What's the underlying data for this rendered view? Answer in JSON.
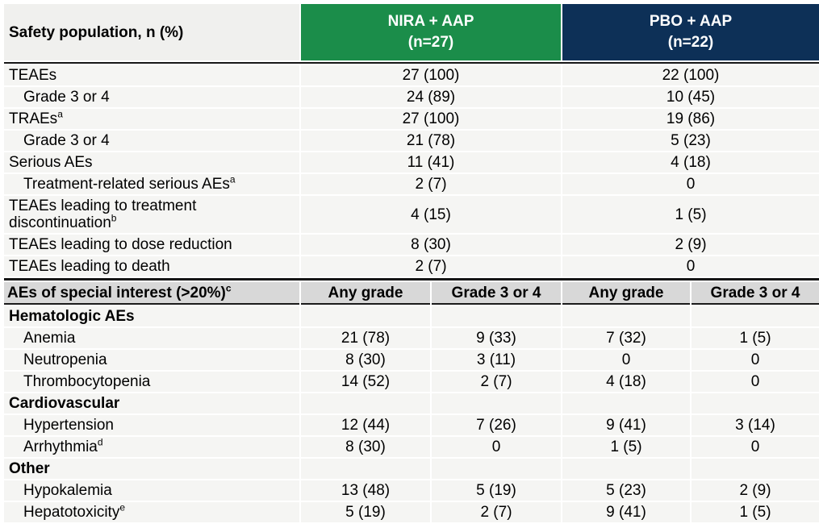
{
  "table": {
    "header": {
      "label": "Safety population, n (%)",
      "groups": [
        {
          "name": "NIRA + AAP",
          "n": "(n=27)"
        },
        {
          "name": "PBO + AAP",
          "n": "(n=22)"
        }
      ]
    },
    "overall_section": {
      "rows": [
        {
          "label": "TEAEs",
          "indent": 0,
          "nira": "27 (100)",
          "pbo": "22 (100)"
        },
        {
          "label": "Grade 3 or 4",
          "indent": 1,
          "nira": "24 (89)",
          "pbo": "10 (45)"
        },
        {
          "label": "TRAEs",
          "sup": "a",
          "indent": 0,
          "nira": "27 (100)",
          "pbo": "19 (86)"
        },
        {
          "label": "Grade 3 or 4",
          "indent": 1,
          "nira": "21 (78)",
          "pbo": "5 (23)"
        },
        {
          "label": "Serious AEs",
          "indent": 0,
          "nira": "11 (41)",
          "pbo": "4 (18)"
        },
        {
          "label": "Treatment-related serious AEs",
          "sup": "a",
          "indent": 1,
          "nira": "2 (7)",
          "pbo": "0"
        },
        {
          "label": "TEAEs leading to treatment discontinuation",
          "sup": "b",
          "indent": 0,
          "nira": "4 (15)",
          "pbo": "1 (5)"
        },
        {
          "label": "TEAEs leading to dose reduction",
          "indent": 0,
          "nira": "8 (30)",
          "pbo": "2 (9)"
        },
        {
          "label": "TEAEs leading to death",
          "indent": 0,
          "nira": "2 (7)",
          "pbo": "0"
        }
      ]
    },
    "special_interest_section": {
      "header": {
        "label": "AEs of special interest (>20%)",
        "sup": "c",
        "columns": [
          "Any grade",
          "Grade 3 or 4",
          "Any grade",
          "Grade 3 or 4"
        ]
      },
      "rows": [
        {
          "label": "Hematologic AEs",
          "category": true
        },
        {
          "label": "Anemia",
          "values": [
            "21 (78)",
            "9 (33)",
            "7 (32)",
            "1 (5)"
          ]
        },
        {
          "label": "Neutropenia",
          "values": [
            "8 (30)",
            "3 (11)",
            "0",
            "0"
          ]
        },
        {
          "label": "Thrombocytopenia",
          "values": [
            "14 (52)",
            "2 (7)",
            "4 (18)",
            "0"
          ]
        },
        {
          "label": "Cardiovascular",
          "category": true
        },
        {
          "label": "Hypertension",
          "values": [
            "12 (44)",
            "7 (26)",
            "9 (41)",
            "3 (14)"
          ]
        },
        {
          "label": "Arrhythmia",
          "sup": "d",
          "values": [
            "8 (30)",
            "0",
            "1 (5)",
            "0"
          ]
        },
        {
          "label": "Other",
          "category": true
        },
        {
          "label": "Hypokalemia",
          "values": [
            "13 (48)",
            "5 (19)",
            "5 (23)",
            "2 (9)"
          ]
        },
        {
          "label": "Hepatotoxicity",
          "sup": "e",
          "values": [
            "5 (19)",
            "2 (7)",
            "9 (41)",
            "1 (5)"
          ]
        }
      ]
    },
    "colors": {
      "nira_green": "#1b8d4a",
      "pbo_navy": "#0d3057",
      "label_header_gray": "#f0f0ee",
      "subheader_gray": "#d8d8d8",
      "row_bg": "#f5f5f3",
      "divider_black": "#161616"
    }
  }
}
